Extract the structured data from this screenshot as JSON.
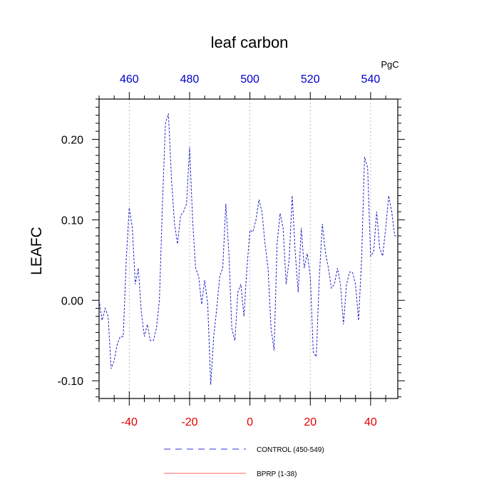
{
  "chart_data": {
    "type": "line",
    "title": "leaf carbon",
    "ylabel": "LEAFC",
    "top_axis_unit": "PgC",
    "xlim": [
      -50,
      49
    ],
    "ylim": [
      -0.122,
      0.25
    ],
    "grid": "vertical dotted lines at major bottom ticks",
    "bottom_ticks": [
      -40,
      -20,
      0,
      20,
      40
    ],
    "bottom_tick_labels": [
      "-40",
      "-20",
      "0",
      "20",
      "40"
    ],
    "left_ticks": [
      -0.1,
      0.0,
      0.1,
      0.2
    ],
    "left_tick_labels": [
      "-0.10",
      "0.00",
      "0.10",
      "0.20"
    ],
    "top_ticks": [
      460,
      480,
      500,
      520,
      540
    ],
    "top_tick_labels": [
      "460",
      "480",
      "500",
      "520",
      "540"
    ],
    "legend": {
      "placement": "bottom",
      "entries": [
        {
          "label": "CONTROL (450-549)",
          "color": "#3333dd",
          "style": "dashed"
        },
        {
          "label": "BPRP (1-38)",
          "color": "#ff6666",
          "style": "solid"
        }
      ]
    },
    "series": [
      {
        "name": "CONTROL (450-549)",
        "color": "#2222cc",
        "style": "dashed",
        "x": [
          -50,
          -49,
          -48,
          -47,
          -46,
          -45,
          -44,
          -43,
          -42,
          -41,
          -40,
          -39,
          -38,
          -37,
          -36,
          -35,
          -34,
          -33,
          -32,
          -31,
          -30,
          -29,
          -28,
          -27,
          -26,
          -25,
          -24,
          -23,
          -22,
          -21,
          -20,
          -19,
          -18,
          -17,
          -16,
          -15,
          -14,
          -13,
          -12,
          -11,
          -10,
          -9,
          -8,
          -7,
          -6,
          -5,
          -4,
          -3,
          -2,
          -1,
          0,
          1,
          2,
          3,
          4,
          5,
          6,
          7,
          8,
          9,
          10,
          11,
          12,
          13,
          14,
          15,
          16,
          17,
          18,
          19,
          20,
          21,
          22,
          23,
          24,
          25,
          26,
          27,
          28,
          29,
          30,
          31,
          32,
          33,
          34,
          35,
          36,
          37,
          38,
          39,
          40,
          41,
          42,
          43,
          44,
          45,
          46,
          47,
          48,
          49
        ],
        "values": [
          0.0,
          -0.025,
          -0.01,
          -0.02,
          -0.085,
          -0.075,
          -0.055,
          -0.045,
          -0.045,
          0.05,
          0.115,
          0.09,
          0.02,
          0.04,
          -0.015,
          -0.045,
          -0.03,
          -0.05,
          -0.05,
          -0.035,
          0.0,
          0.12,
          0.22,
          0.232,
          0.15,
          0.095,
          0.07,
          0.105,
          0.11,
          0.12,
          0.19,
          0.1,
          0.04,
          0.03,
          -0.005,
          0.025,
          -0.005,
          -0.105,
          -0.045,
          -0.01,
          0.03,
          0.04,
          0.12,
          0.06,
          -0.035,
          -0.05,
          0.01,
          0.02,
          -0.02,
          0.04,
          0.087,
          0.085,
          0.1,
          0.125,
          0.11,
          0.07,
          0.04,
          -0.035,
          -0.062,
          0.07,
          0.108,
          0.09,
          0.02,
          0.05,
          0.13,
          0.06,
          0.01,
          0.09,
          0.04,
          0.058,
          0.03,
          -0.065,
          -0.07,
          0.03,
          0.095,
          0.06,
          0.04,
          0.015,
          0.02,
          0.04,
          0.02,
          -0.03,
          0.02,
          0.035,
          0.035,
          0.02,
          -0.025,
          0.05,
          0.178,
          0.165,
          0.055,
          0.06,
          0.11,
          0.065,
          0.055,
          0.09,
          0.13,
          0.11,
          0.08,
          0.08
        ]
      }
    ]
  }
}
